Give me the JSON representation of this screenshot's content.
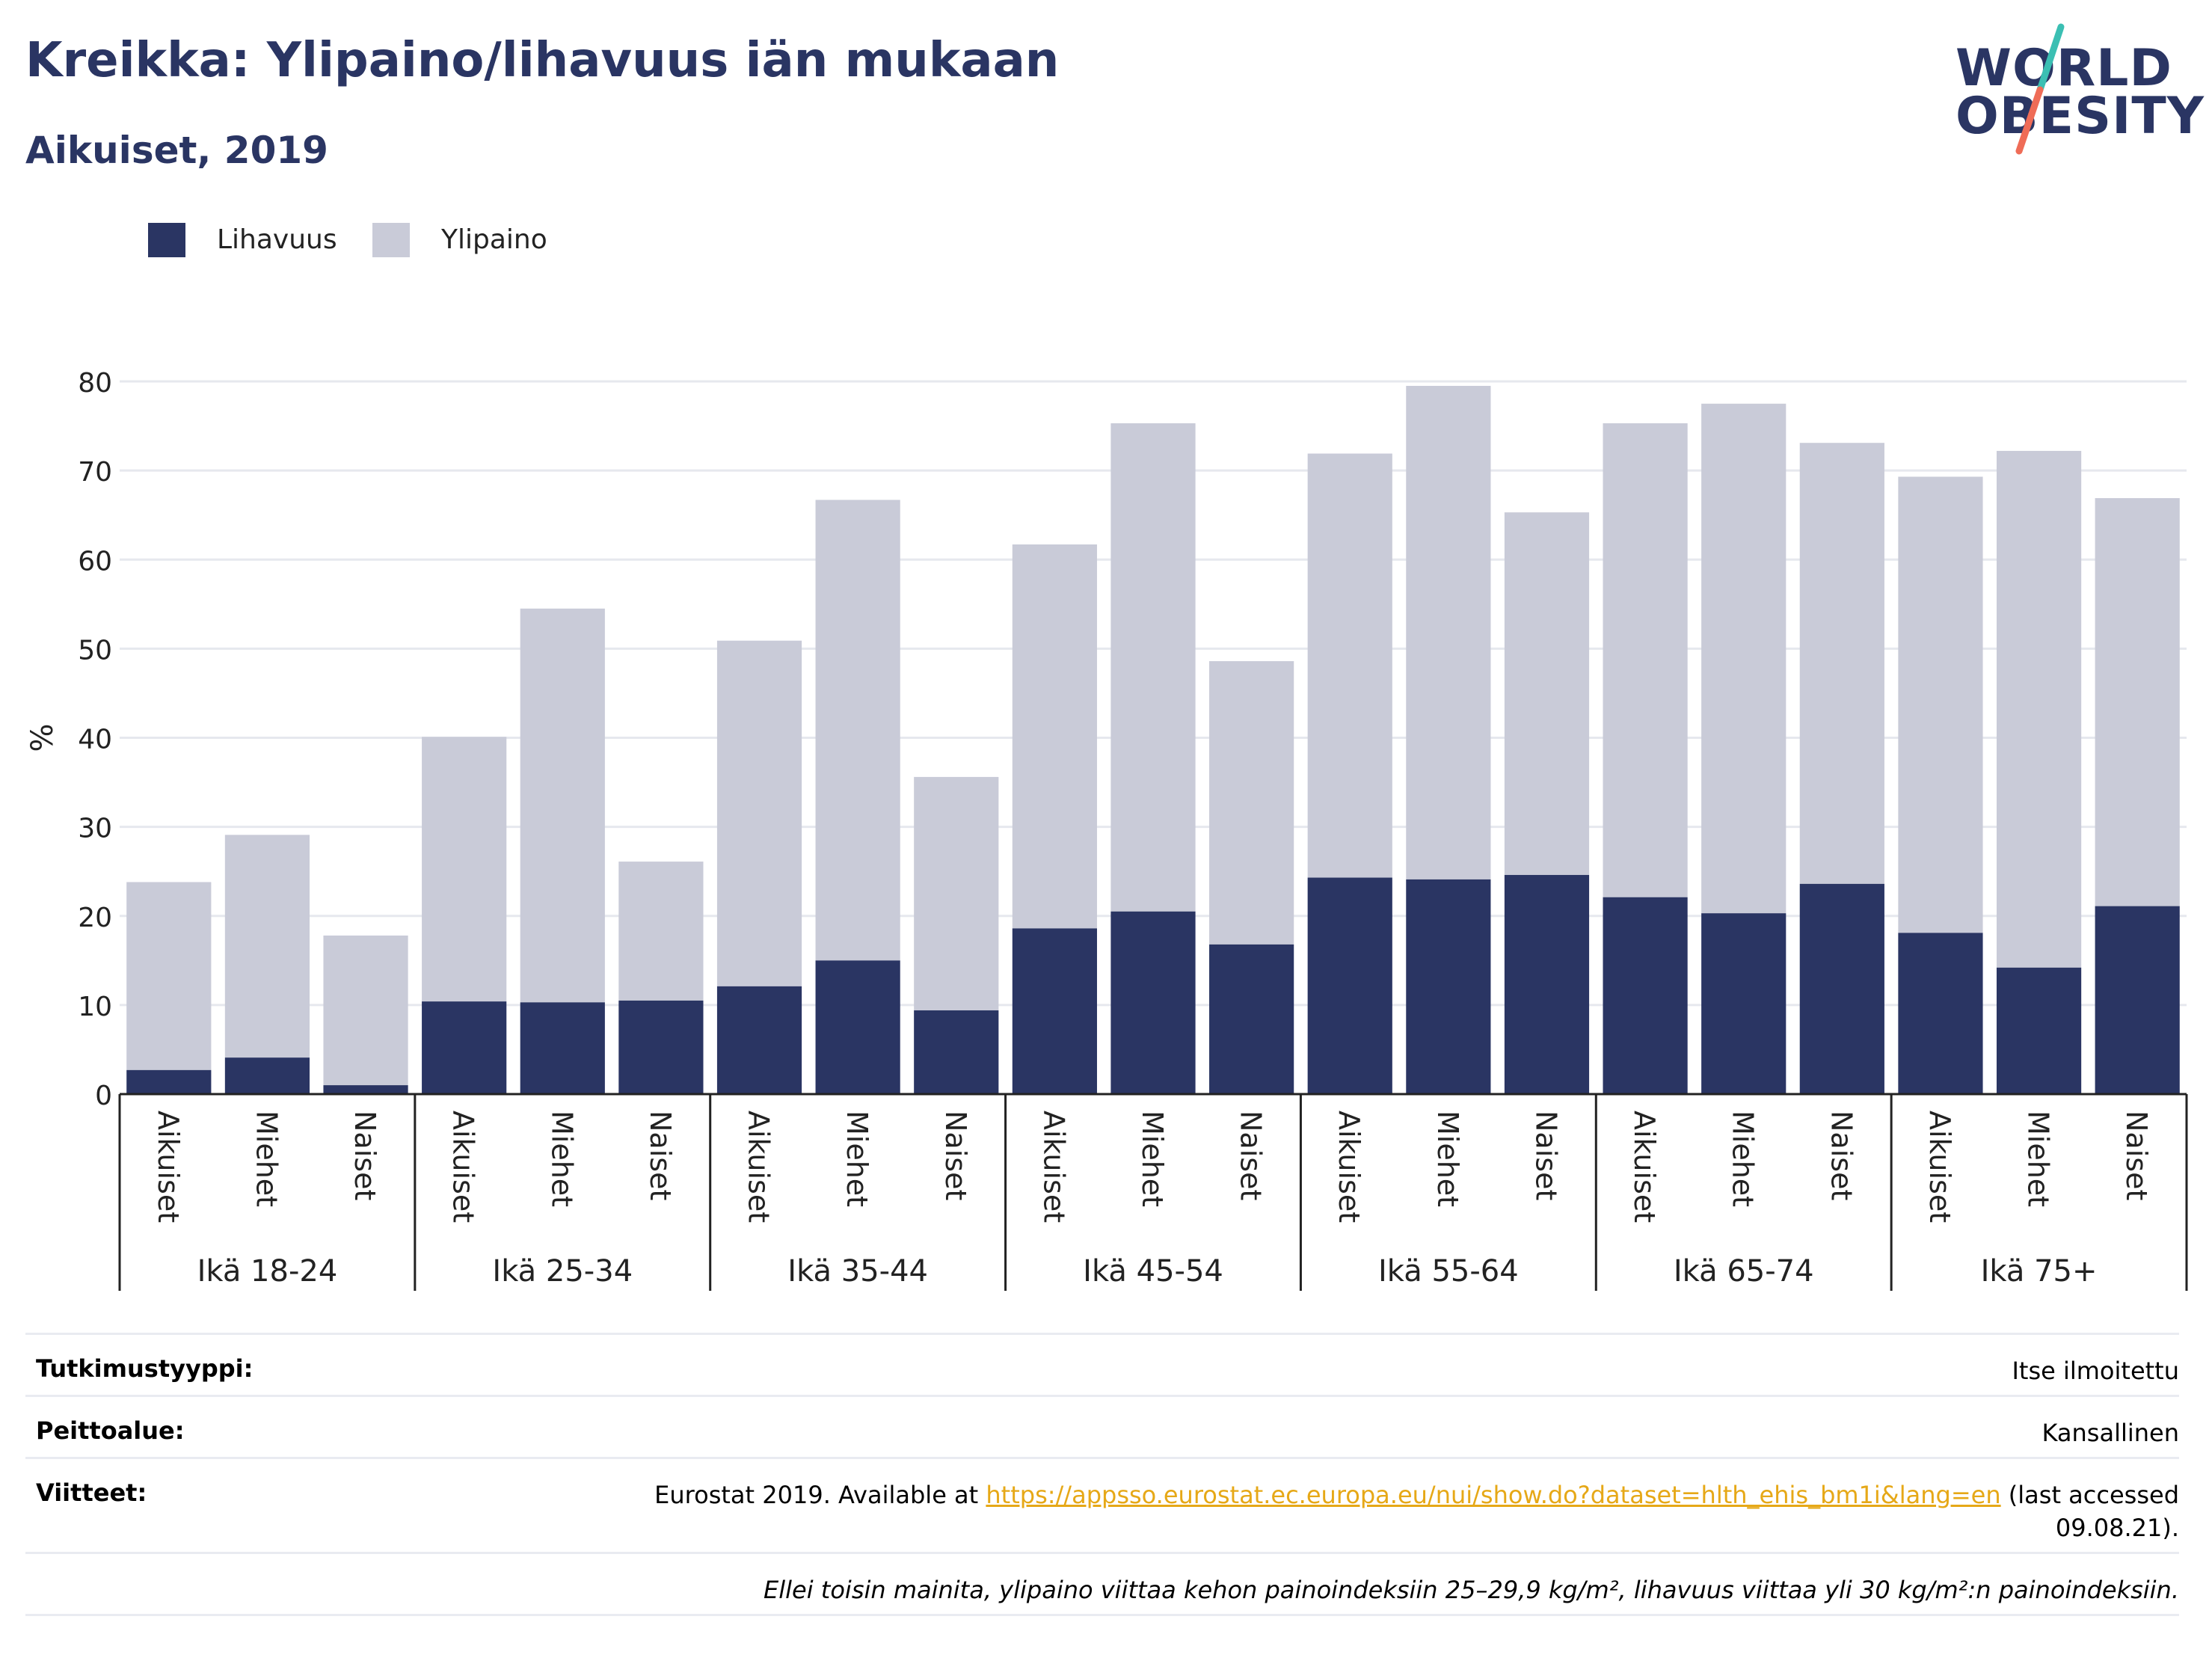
{
  "header": {
    "title": "Kreikka: Ylipaino/lihavuus iän mukaan",
    "subtitle": "Aikuiset, 2019"
  },
  "logo": {
    "line1": "WORLD",
    "line2": "OBESITY"
  },
  "colors": {
    "obesity": "#2a3563",
    "overweight": "#c9cbd8",
    "title": "#2a3563",
    "link": "#e6a817",
    "logo_slash_top": "#3bbfb3",
    "logo_slash_bottom": "#ef6c57"
  },
  "chart_data": {
    "type": "bar",
    "stacked": true,
    "ylabel": "%",
    "ylim": [
      0,
      80
    ],
    "yticks": [
      0,
      10,
      20,
      30,
      40,
      50,
      60,
      70,
      80
    ],
    "grid": true,
    "legend_position": "top-left",
    "groups": [
      "Ikä 18-24",
      "Ikä 25-34",
      "Ikä 35-44",
      "Ikä 45-54",
      "Ikä 55-64",
      "Ikä 65-74",
      "Ikä 75+"
    ],
    "subcategories": [
      "Aikuiset",
      "Miehet",
      "Naiset"
    ],
    "series": [
      {
        "name": "Lihavuus",
        "values": [
          2.7,
          4.1,
          1.0,
          10.4,
          10.3,
          10.5,
          12.1,
          15.0,
          9.4,
          18.6,
          20.5,
          16.8,
          24.3,
          24.1,
          24.6,
          22.1,
          20.3,
          23.6,
          18.1,
          14.2,
          21.1
        ]
      },
      {
        "name": "Ylipaino",
        "values": [
          21.1,
          25.0,
          16.8,
          29.7,
          44.2,
          15.6,
          38.8,
          51.7,
          26.2,
          43.1,
          54.8,
          31.8,
          47.6,
          55.4,
          40.7,
          53.2,
          57.2,
          49.5,
          51.2,
          58.0,
          45.8
        ]
      }
    ]
  },
  "info": {
    "rows": [
      {
        "label": "Tutkimustyyppi:",
        "value": "Itse ilmoitettu"
      },
      {
        "label": "Peittoalue:",
        "value": "Kansallinen"
      }
    ],
    "reference": {
      "label": "Viitteet:",
      "prefix": "Eurostat 2019. Available at ",
      "url": "https://appsso.eurostat.ec.europa.eu/nui/show.do?dataset=hlth_ehis_bm1i&lang=en",
      "suffix_line1": " (last accessed",
      "suffix_line2": "09.08.21)."
    },
    "note": "Ellei toisin mainita, ylipaino viittaa kehon painoindeksiin 25–29,9 kg/m², lihavuus viittaa yli 30 kg/m²:n painoindeksiin."
  }
}
